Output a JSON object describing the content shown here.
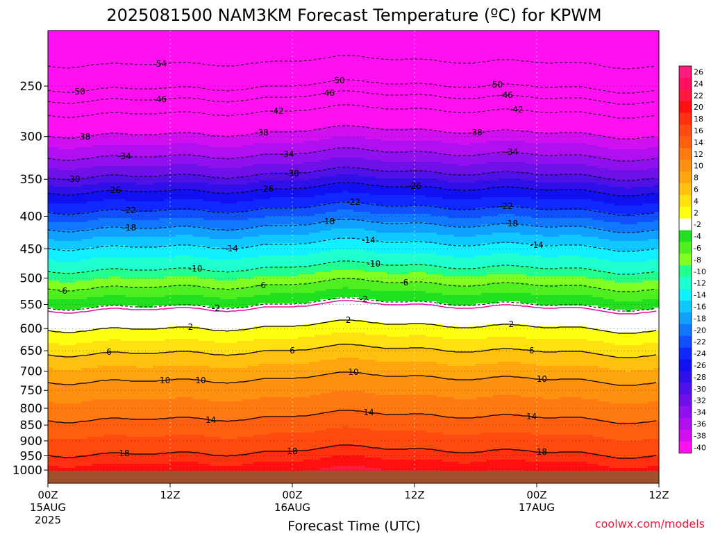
{
  "chart_data": {
    "type": "heatmap",
    "title": "2025081500 NAM3KM Forecast Temperature (ºC) for KPWM",
    "xlabel": "Forecast Time (UTC)",
    "credit": "coolwx.com/models",
    "x_ticks": [
      {
        "label": "00Z",
        "sub": [
          "15AUG",
          "2025"
        ]
      },
      {
        "label": "12Z",
        "sub": []
      },
      {
        "label": "00Z",
        "sub": [
          "16AUG"
        ]
      },
      {
        "label": "12Z",
        "sub": []
      },
      {
        "label": "00Z",
        "sub": [
          "17AUG"
        ]
      },
      {
        "label": "12Z",
        "sub": []
      }
    ],
    "x_range_hours": [
      0,
      60
    ],
    "y_axis": "pressure (hPa), inverted",
    "y_ticks": [
      250,
      300,
      350,
      400,
      450,
      500,
      550,
      600,
      650,
      700,
      750,
      800,
      850,
      900,
      950,
      1000
    ],
    "y_range_hPa": [
      1020,
      200
    ],
    "dotted_grid": true,
    "freezing_level_color": "#e0109a",
    "colorbar": {
      "levels": [
        "26",
        "24",
        "22",
        "20",
        "18",
        "16",
        "14",
        "12",
        "10",
        "8",
        "6",
        "4",
        "2",
        "-2",
        "-4",
        "-6",
        "-8",
        "-10",
        "-12",
        "-14",
        "-16",
        "-18",
        "-20",
        "-22",
        "-24",
        "-26",
        "-28",
        "-30",
        "-32",
        "-34",
        "-36",
        "-38",
        "-40"
      ],
      "colors": [
        "#ff1a80",
        "#ff1060",
        "#ff1a40",
        "#ff1010",
        "#ff3010",
        "#ff4a10",
        "#ff6010",
        "#ff7a10",
        "#ff9010",
        "#ffa510",
        "#ffc010",
        "#ffe010",
        "#ffff10",
        "#ffffff",
        "#20e020",
        "#50f020",
        "#80ff20",
        "#20ff90",
        "#20ffd0",
        "#10f0ff",
        "#10c8ff",
        "#10a0ff",
        "#1078ff",
        "#1050ff",
        "#1028ff",
        "#1010f0",
        "#3010e8",
        "#5010e8",
        "#7010e8",
        "#9010f0",
        "#b010f0",
        "#d010f0",
        "#ff10f0"
      ]
    },
    "contours": [
      {
        "value": -54,
        "labels_at_hours": [
          11
        ]
      },
      {
        "value": -50,
        "labels_at_hours": [
          3,
          28.5,
          44
        ]
      },
      {
        "value": -46,
        "labels_at_hours": [
          11,
          27.5,
          45
        ]
      },
      {
        "value": -42,
        "labels_at_hours": [
          22.5,
          46
        ]
      },
      {
        "value": -38,
        "labels_at_hours": [
          3.5,
          21,
          42
        ]
      },
      {
        "value": -34,
        "labels_at_hours": [
          7.5,
          23.5,
          45.5
        ]
      },
      {
        "value": -30,
        "labels_at_hours": [
          2.5,
          24,
          24
        ]
      },
      {
        "value": -26,
        "labels_at_hours": [
          6.5,
          21.5,
          36
        ]
      },
      {
        "value": -22,
        "labels_at_hours": [
          8,
          30,
          45
        ]
      },
      {
        "value": -18,
        "labels_at_hours": [
          8,
          27.5,
          45.5
        ]
      },
      {
        "value": -14,
        "labels_at_hours": [
          18,
          31.5,
          48
        ]
      },
      {
        "value": -10,
        "labels_at_hours": [
          14.5,
          32
        ]
      },
      {
        "value": -6,
        "labels_at_hours": [
          1.5,
          21,
          35
        ]
      },
      {
        "value": -2,
        "labels_at_hours": [
          16.5,
          31
        ]
      },
      {
        "value": 2,
        "labels_at_hours": [
          14,
          29.5,
          45.5
        ]
      },
      {
        "value": 6,
        "labels_at_hours": [
          6,
          24,
          47.5
        ]
      },
      {
        "value": 10,
        "labels_at_hours": [
          15,
          30,
          48.5,
          11.5
        ]
      },
      {
        "value": 14,
        "labels_at_hours": [
          16,
          31.5,
          47.5
        ]
      },
      {
        "value": 18,
        "labels_at_hours": [
          7.5,
          24,
          48.5
        ]
      }
    ]
  }
}
